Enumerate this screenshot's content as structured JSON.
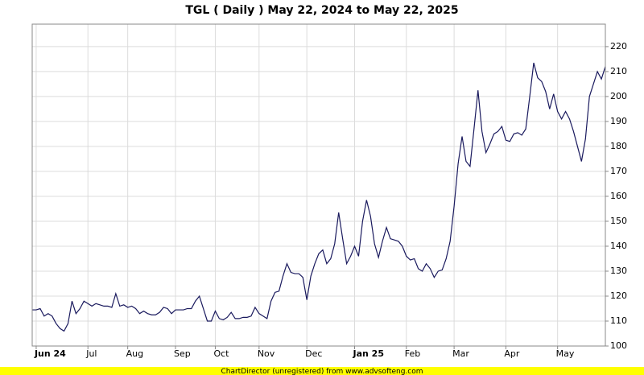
{
  "chart_data": {
    "type": "line",
    "title": "TGL ( Daily ) May 22, 2024 to May 22, 2025",
    "categories": [
      null,
      "Jun 24",
      null,
      null,
      null,
      null,
      null,
      null,
      null,
      null,
      null,
      null,
      null,
      null,
      "Jul",
      null,
      null,
      null,
      null,
      null,
      null,
      null,
      null,
      null,
      "Aug",
      null,
      null,
      null,
      null,
      null,
      null,
      null,
      null,
      null,
      null,
      null,
      "Sep",
      null,
      null,
      null,
      null,
      null,
      null,
      null,
      null,
      null,
      "Oct",
      null,
      null,
      null,
      null,
      null,
      null,
      null,
      null,
      null,
      null,
      "Nov",
      null,
      null,
      null,
      null,
      null,
      null,
      null,
      null,
      null,
      null,
      null,
      "Dec",
      null,
      null,
      null,
      null,
      null,
      null,
      null,
      null,
      null,
      null,
      null,
      "Jan 25",
      null,
      null,
      null,
      null,
      null,
      null,
      null,
      null,
      null,
      null,
      null,
      null,
      "Feb",
      null,
      null,
      null,
      null,
      null,
      null,
      null,
      null,
      null,
      null,
      null,
      "Mar",
      null,
      null,
      null,
      null,
      null,
      null,
      null,
      null,
      null,
      null,
      null,
      null,
      "Apr",
      null,
      null,
      null,
      null,
      null,
      null,
      null,
      null,
      null,
      null,
      null,
      null,
      "May",
      null,
      null,
      null,
      null,
      null,
      null,
      null,
      null,
      null,
      null,
      null,
      null
    ],
    "values": [
      114.5,
      114.5,
      115,
      112,
      113,
      112,
      109,
      107,
      106,
      109,
      118,
      113,
      115,
      118,
      117,
      116,
      117,
      116.5,
      116,
      116,
      115.5,
      121,
      116,
      116.5,
      115.5,
      116,
      115,
      113,
      114,
      113,
      112.5,
      112.5,
      113.5,
      115.5,
      115,
      113,
      114.5,
      114.5,
      114.5,
      115,
      115,
      118,
      120,
      115,
      110,
      110,
      114,
      111,
      110.5,
      111.5,
      113.5,
      111,
      111,
      111.5,
      111.5,
      112,
      115.5,
      113,
      112,
      111,
      118,
      121.5,
      122,
      128,
      133,
      129.5,
      129,
      129,
      127.5,
      118.5,
      128,
      133,
      137,
      138.5,
      133,
      135,
      141,
      153.5,
      143,
      133,
      136,
      140,
      136,
      150,
      158.5,
      152,
      141,
      135.5,
      142,
      147.5,
      143,
      142.5,
      142,
      140,
      136,
      134.5,
      135,
      131,
      130,
      133,
      131,
      127.5,
      130,
      130.5,
      135,
      142,
      156,
      173,
      184,
      174,
      172,
      187,
      202.5,
      186,
      177.5,
      181,
      185,
      186,
      188,
      182.5,
      182,
      185,
      185.5,
      184.5,
      187,
      200,
      213.5,
      207.5,
      206,
      202,
      195,
      201,
      194,
      191,
      194,
      191,
      186,
      180,
      174,
      183,
      200,
      205,
      210,
      207,
      212
    ],
    "color": "#1a1a5e",
    "ylim": [
      100,
      229
    ],
    "yticks": [
      100,
      110,
      120,
      130,
      140,
      150,
      160,
      170,
      180,
      190,
      200,
      210,
      220
    ],
    "grid": true
  },
  "footer": "ChartDirector (unregistered) from www.advsofteng.com"
}
